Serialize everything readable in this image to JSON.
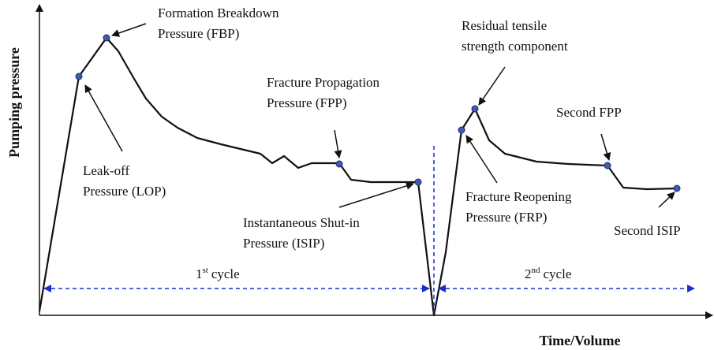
{
  "axes": {
    "y_label": "Pumping pressure",
    "x_label": "Time/Volume"
  },
  "annotations": [
    {
      "lines": [
        "Formation Breakdown",
        "Pressure (FBP)"
      ]
    },
    {
      "lines": [
        "Leak-off",
        "Pressure (LOP)"
      ]
    },
    {
      "lines": [
        "Fracture Propagation",
        "Pressure (FPP)"
      ]
    },
    {
      "lines": [
        "Instantaneous Shut-in",
        "Pressure (ISIP)"
      ]
    },
    {
      "lines": [
        "Residual tensile",
        "strength component"
      ]
    },
    {
      "lines": [
        "Fracture Reopening",
        "Pressure (FRP)"
      ]
    },
    {
      "lines": [
        "Second FPP"
      ]
    },
    {
      "lines": [
        "Second ISIP"
      ]
    }
  ],
  "cycles": [
    {
      "ordinal": "1",
      "suffix": "st",
      "label": "cycle"
    },
    {
      "ordinal": "2",
      "suffix": "nd",
      "label": "cycle"
    }
  ]
}
